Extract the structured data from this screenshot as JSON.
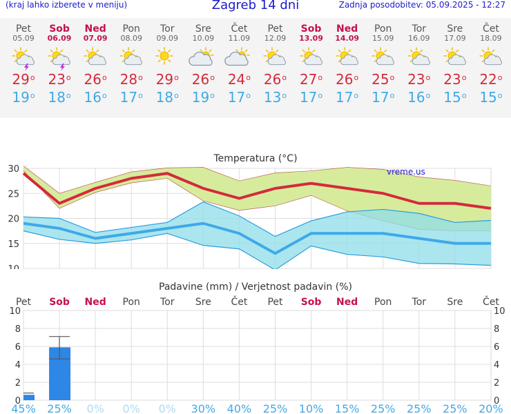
{
  "header": {
    "left": "(kraj lahko izberete v meniju)",
    "title": "Zagreb 14 dni",
    "updated": "Zadnja posodobitev: 05.09.2025 - 12:27"
  },
  "days": [
    {
      "name": "Pet",
      "date": "05.09",
      "weekend": false,
      "icon": "sun-cloud-thunder",
      "max": 29,
      "min": 19
    },
    {
      "name": "Sob",
      "date": "06.09",
      "weekend": true,
      "icon": "sun-cloud-thunder",
      "max": 23,
      "min": 18
    },
    {
      "name": "Ned",
      "date": "07.09",
      "weekend": true,
      "icon": "sun-cloud",
      "max": 26,
      "min": 16
    },
    {
      "name": "Pon",
      "date": "08.09",
      "weekend": false,
      "icon": "sun-cloud",
      "max": 28,
      "min": 17
    },
    {
      "name": "Tor",
      "date": "09.09",
      "weekend": false,
      "icon": "sun",
      "max": 29,
      "min": 18
    },
    {
      "name": "Sre",
      "date": "10.09",
      "weekend": false,
      "icon": "cloud-sun",
      "max": 26,
      "min": 19
    },
    {
      "name": "Čet",
      "date": "11.09",
      "weekend": false,
      "icon": "cloud-sun",
      "max": 24,
      "min": 17
    },
    {
      "name": "Pet",
      "date": "12.09",
      "weekend": false,
      "icon": "sun-cloud",
      "max": 26,
      "min": 13
    },
    {
      "name": "Sob",
      "date": "13.09",
      "weekend": true,
      "icon": "sun-cloud",
      "max": 27,
      "min": 17
    },
    {
      "name": "Ned",
      "date": "14.09",
      "weekend": true,
      "icon": "sun-cloud",
      "max": 26,
      "min": 17
    },
    {
      "name": "Pon",
      "date": "15.09",
      "weekend": false,
      "icon": "sun-cloud",
      "max": 25,
      "min": 17
    },
    {
      "name": "Tor",
      "date": "16.09",
      "weekend": false,
      "icon": "sun-cloud",
      "max": 23,
      "min": 16
    },
    {
      "name": "Sre",
      "date": "17.09",
      "weekend": false,
      "icon": "sun-cloud",
      "max": 23,
      "min": 15
    },
    {
      "name": "Čet",
      "date": "18.09",
      "weekend": false,
      "icon": "sun-cloud",
      "max": 22,
      "min": 15
    }
  ],
  "degree_symbol": "o",
  "colors": {
    "max": "#d42a3c",
    "min": "#3fa9e8",
    "weekend": "#c4114d",
    "max_band": "#d6ec9c",
    "min_band": "#8fdde9",
    "precip": "#2e86e6"
  },
  "chart_data": [
    {
      "type": "line",
      "title": "Temperatura (°C)",
      "watermark": "vreme.us",
      "ylim": [
        10,
        30
      ],
      "yticks": [
        10,
        15,
        20,
        25,
        30
      ],
      "x": [
        "Pet",
        "Sob",
        "Ned",
        "Pon",
        "Tor",
        "Sre",
        "Čet",
        "Pet",
        "Sob",
        "Ned",
        "Pon",
        "Tor",
        "Sre",
        "Čet"
      ],
      "series": [
        {
          "values": [
            29,
            23,
            26,
            28,
            29,
            26,
            24,
            26,
            27,
            26,
            25,
            23,
            23,
            22
          ],
          "band_low": [
            29.5,
            22,
            25.2,
            27.1,
            28,
            23.5,
            21.6,
            22.5,
            24.6,
            21.5,
            19.5,
            17.8,
            17.5,
            17.5
          ],
          "band_high": [
            30.5,
            25,
            27.2,
            29.3,
            30.1,
            30.2,
            27.5,
            29.1,
            29.5,
            30.2,
            29.8,
            28.3,
            27.6,
            26.5
          ]
        },
        {
          "values": [
            19,
            18,
            16,
            17,
            18,
            19,
            17,
            13,
            17,
            17,
            17,
            16,
            15,
            15
          ],
          "band_low": [
            17.5,
            15.8,
            15,
            15.7,
            17,
            14.6,
            13.9,
            9.7,
            14.5,
            12.8,
            12.3,
            11,
            10.9,
            10.6
          ],
          "band_high": [
            20.3,
            20,
            17.2,
            18.2,
            19.2,
            23.3,
            20.5,
            16.4,
            19.5,
            21.3,
            21.8,
            21,
            19.2,
            19.6
          ]
        }
      ]
    },
    {
      "type": "bar",
      "title": "Padavine (mm) / Verjetnost padavin (%)",
      "ylim": [
        0,
        10
      ],
      "yticks": [
        0,
        2,
        4,
        6,
        8,
        10
      ],
      "categories": [
        "Pet",
        "Sob",
        "Ned",
        "Pon",
        "Tor",
        "Sre",
        "Čet",
        "Pet",
        "Sob",
        "Ned",
        "Pon",
        "Tor",
        "Sre",
        "Čet"
      ],
      "values": [
        0.6,
        5.9,
        0,
        0,
        0,
        0,
        0,
        0,
        0,
        0,
        0,
        0,
        0,
        0
      ],
      "error_low": [
        0.6,
        4.6,
        null,
        null,
        null,
        null,
        null,
        null,
        null,
        null,
        null,
        null,
        null,
        null
      ],
      "error_high": [
        0.8,
        7.1,
        null,
        null,
        null,
        null,
        null,
        null,
        null,
        null,
        null,
        null,
        null,
        null
      ],
      "probability": [
        "45%",
        "25%",
        "0%",
        "0%",
        "0%",
        "30%",
        "40%",
        "25%",
        "10%",
        "15%",
        "25%",
        "25%",
        "25%",
        "20%"
      ]
    }
  ]
}
